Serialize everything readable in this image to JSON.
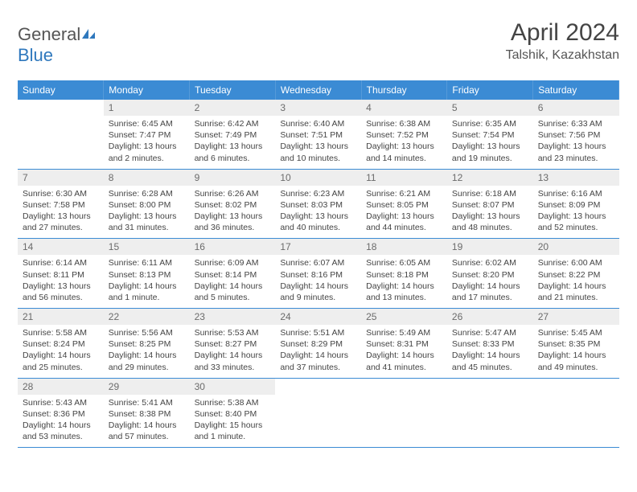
{
  "logo": {
    "part1": "General",
    "part2": "Blue"
  },
  "title": "April 2024",
  "location": "Talshik, Kazakhstan",
  "colors": {
    "header_bg": "#3b8bd4",
    "header_text": "#ffffff",
    "daynum_bg": "#eeeeee",
    "daynum_text": "#6b6b6b",
    "body_text": "#444444",
    "rule": "#3b8bd4",
    "logo_gray": "#555555",
    "logo_blue": "#2f78bd"
  },
  "dow": [
    "Sunday",
    "Monday",
    "Tuesday",
    "Wednesday",
    "Thursday",
    "Friday",
    "Saturday"
  ],
  "weeks": [
    [
      null,
      {
        "n": "1",
        "sr": "6:45 AM",
        "ss": "7:47 PM",
        "dl": "13 hours and 2 minutes."
      },
      {
        "n": "2",
        "sr": "6:42 AM",
        "ss": "7:49 PM",
        "dl": "13 hours and 6 minutes."
      },
      {
        "n": "3",
        "sr": "6:40 AM",
        "ss": "7:51 PM",
        "dl": "13 hours and 10 minutes."
      },
      {
        "n": "4",
        "sr": "6:38 AM",
        "ss": "7:52 PM",
        "dl": "13 hours and 14 minutes."
      },
      {
        "n": "5",
        "sr": "6:35 AM",
        "ss": "7:54 PM",
        "dl": "13 hours and 19 minutes."
      },
      {
        "n": "6",
        "sr": "6:33 AM",
        "ss": "7:56 PM",
        "dl": "13 hours and 23 minutes."
      }
    ],
    [
      {
        "n": "7",
        "sr": "6:30 AM",
        "ss": "7:58 PM",
        "dl": "13 hours and 27 minutes."
      },
      {
        "n": "8",
        "sr": "6:28 AM",
        "ss": "8:00 PM",
        "dl": "13 hours and 31 minutes."
      },
      {
        "n": "9",
        "sr": "6:26 AM",
        "ss": "8:02 PM",
        "dl": "13 hours and 36 minutes."
      },
      {
        "n": "10",
        "sr": "6:23 AM",
        "ss": "8:03 PM",
        "dl": "13 hours and 40 minutes."
      },
      {
        "n": "11",
        "sr": "6:21 AM",
        "ss": "8:05 PM",
        "dl": "13 hours and 44 minutes."
      },
      {
        "n": "12",
        "sr": "6:18 AM",
        "ss": "8:07 PM",
        "dl": "13 hours and 48 minutes."
      },
      {
        "n": "13",
        "sr": "6:16 AM",
        "ss": "8:09 PM",
        "dl": "13 hours and 52 minutes."
      }
    ],
    [
      {
        "n": "14",
        "sr": "6:14 AM",
        "ss": "8:11 PM",
        "dl": "13 hours and 56 minutes."
      },
      {
        "n": "15",
        "sr": "6:11 AM",
        "ss": "8:13 PM",
        "dl": "14 hours and 1 minute."
      },
      {
        "n": "16",
        "sr": "6:09 AM",
        "ss": "8:14 PM",
        "dl": "14 hours and 5 minutes."
      },
      {
        "n": "17",
        "sr": "6:07 AM",
        "ss": "8:16 PM",
        "dl": "14 hours and 9 minutes."
      },
      {
        "n": "18",
        "sr": "6:05 AM",
        "ss": "8:18 PM",
        "dl": "14 hours and 13 minutes."
      },
      {
        "n": "19",
        "sr": "6:02 AM",
        "ss": "8:20 PM",
        "dl": "14 hours and 17 minutes."
      },
      {
        "n": "20",
        "sr": "6:00 AM",
        "ss": "8:22 PM",
        "dl": "14 hours and 21 minutes."
      }
    ],
    [
      {
        "n": "21",
        "sr": "5:58 AM",
        "ss": "8:24 PM",
        "dl": "14 hours and 25 minutes."
      },
      {
        "n": "22",
        "sr": "5:56 AM",
        "ss": "8:25 PM",
        "dl": "14 hours and 29 minutes."
      },
      {
        "n": "23",
        "sr": "5:53 AM",
        "ss": "8:27 PM",
        "dl": "14 hours and 33 minutes."
      },
      {
        "n": "24",
        "sr": "5:51 AM",
        "ss": "8:29 PM",
        "dl": "14 hours and 37 minutes."
      },
      {
        "n": "25",
        "sr": "5:49 AM",
        "ss": "8:31 PM",
        "dl": "14 hours and 41 minutes."
      },
      {
        "n": "26",
        "sr": "5:47 AM",
        "ss": "8:33 PM",
        "dl": "14 hours and 45 minutes."
      },
      {
        "n": "27",
        "sr": "5:45 AM",
        "ss": "8:35 PM",
        "dl": "14 hours and 49 minutes."
      }
    ],
    [
      {
        "n": "28",
        "sr": "5:43 AM",
        "ss": "8:36 PM",
        "dl": "14 hours and 53 minutes."
      },
      {
        "n": "29",
        "sr": "5:41 AM",
        "ss": "8:38 PM",
        "dl": "14 hours and 57 minutes."
      },
      {
        "n": "30",
        "sr": "5:38 AM",
        "ss": "8:40 PM",
        "dl": "15 hours and 1 minute."
      },
      null,
      null,
      null,
      null
    ]
  ],
  "labels": {
    "sunrise": "Sunrise:",
    "sunset": "Sunset:",
    "daylight": "Daylight:"
  }
}
